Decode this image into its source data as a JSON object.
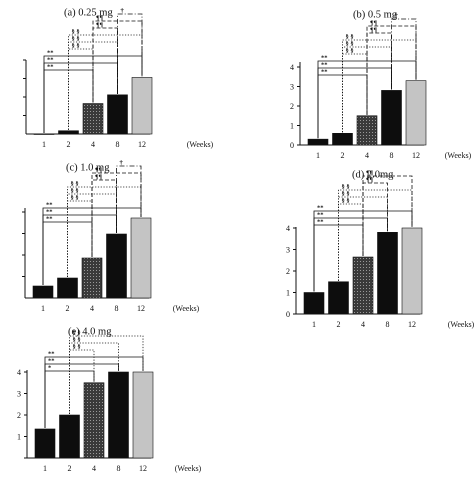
{
  "figure": {
    "x_unit": "(Weeks)"
  },
  "chart_data": [
    {
      "type": "bar",
      "title": "(a) 0.25 mg",
      "categories": [
        "1",
        "2",
        "4",
        "8",
        "12"
      ],
      "values": [
        0,
        0.15,
        1.4,
        1.8,
        2.6
      ],
      "ylim": [
        0,
        3.4
      ],
      "y_ticks": [],
      "fills": [
        "solid-black",
        "solid-black",
        "dotted-dark",
        "solid-black",
        "solid-gray"
      ],
      "significance": [
        {
          "label": "**",
          "from": "1",
          "to": "4",
          "style": "solid"
        },
        {
          "label": "**",
          "from": "1",
          "to": "8",
          "style": "solid"
        },
        {
          "label": "**",
          "from": "1",
          "to": "12",
          "style": "solid"
        },
        {
          "label": "§ §",
          "from": "2",
          "to": "4",
          "style": "dotted"
        },
        {
          "label": "§ §",
          "from": "2",
          "to": "8",
          "style": "dotted"
        },
        {
          "label": "§ §",
          "from": "2",
          "to": "12",
          "style": "dotted"
        },
        {
          "label": "¶¶",
          "from": "4",
          "to": "8",
          "style": "dashed"
        },
        {
          "label": "¶¶",
          "from": "4",
          "to": "12",
          "style": "dashed"
        },
        {
          "label": "†",
          "from": "8",
          "to": "12",
          "style": "dashdot"
        }
      ]
    },
    {
      "type": "bar",
      "title": "(b) 0.5 mg",
      "categories": [
        "1",
        "2",
        "4",
        "8",
        "12"
      ],
      "values": [
        0.3,
        0.6,
        1.5,
        2.8,
        3.3
      ],
      "ylim": [
        0,
        4
      ],
      "y_ticks": [
        "0",
        "1",
        "2",
        "3",
        "4"
      ],
      "fills": [
        "solid-black",
        "solid-black",
        "dotted-dark",
        "solid-black",
        "solid-gray"
      ],
      "significance": [
        {
          "label": "**",
          "from": "1",
          "to": "4",
          "style": "solid"
        },
        {
          "label": "**",
          "from": "1",
          "to": "8",
          "style": "solid"
        },
        {
          "label": "**",
          "from": "1",
          "to": "12",
          "style": "solid"
        },
        {
          "label": "§ §",
          "from": "2",
          "to": "4",
          "style": "dotted"
        },
        {
          "label": "§ §",
          "from": "2",
          "to": "8",
          "style": "dotted"
        },
        {
          "label": "§ §",
          "from": "2",
          "to": "12",
          "style": "dotted"
        },
        {
          "label": "¶¶",
          "from": "4",
          "to": "8",
          "style": "dashed"
        },
        {
          "label": "¶¶",
          "from": "4",
          "to": "12",
          "style": "dashed"
        },
        {
          "label": "†",
          "from": "8",
          "to": "12",
          "style": "dashdot"
        }
      ]
    },
    {
      "type": "bar",
      "title": "(c) 1.0 mg",
      "categories": [
        "1",
        "2",
        "4",
        "8",
        "12"
      ],
      "values": [
        0.6,
        1.0,
        2.0,
        3.2,
        4.0
      ],
      "ylim": [
        0,
        4.3
      ],
      "y_ticks": [],
      "fills": [
        "solid-black",
        "solid-black",
        "dotted-dark",
        "solid-black",
        "solid-gray"
      ],
      "significance": [
        {
          "label": "**",
          "from": "1",
          "to": "4",
          "style": "solid"
        },
        {
          "label": "**",
          "from": "1",
          "to": "8",
          "style": "solid"
        },
        {
          "label": "**",
          "from": "1",
          "to": "12",
          "style": "solid"
        },
        {
          "label": "§ §",
          "from": "2",
          "to": "4",
          "style": "dotted"
        },
        {
          "label": "§ §",
          "from": "2",
          "to": "8",
          "style": "dotted"
        },
        {
          "label": "§ §",
          "from": "2",
          "to": "12",
          "style": "dotted"
        },
        {
          "label": "¶¶",
          "from": "4",
          "to": "8",
          "style": "dashed"
        },
        {
          "label": "¶¶",
          "from": "4",
          "to": "12",
          "style": "dashed"
        },
        {
          "label": "†",
          "from": "8",
          "to": "12",
          "style": "dashdot"
        }
      ]
    },
    {
      "type": "bar",
      "title": "(d) 2.0mg",
      "categories": [
        "1",
        "2",
        "4",
        "8",
        "12"
      ],
      "values": [
        1.0,
        1.5,
        2.65,
        3.8,
        4.0
      ],
      "ylim": [
        0,
        4
      ],
      "y_ticks": [
        "0",
        "1",
        "2",
        "3",
        "4"
      ],
      "fills": [
        "solid-black",
        "solid-black",
        "dotted-dark",
        "solid-black",
        "solid-gray"
      ],
      "significance": [
        {
          "label": "**",
          "from": "1",
          "to": "4",
          "style": "solid"
        },
        {
          "label": "**",
          "from": "1",
          "to": "8",
          "style": "solid"
        },
        {
          "label": "**",
          "from": "1",
          "to": "12",
          "style": "solid"
        },
        {
          "label": "§ §",
          "from": "2",
          "to": "4",
          "style": "dotted"
        },
        {
          "label": "§ §",
          "from": "2",
          "to": "8",
          "style": "dotted"
        },
        {
          "label": "§ §",
          "from": "2",
          "to": "12",
          "style": "dotted"
        },
        {
          "label": "¶¶",
          "from": "4",
          "to": "8",
          "style": "dashed"
        },
        {
          "label": "¶¶",
          "from": "4",
          "to": "12",
          "style": "dashed"
        }
      ]
    },
    {
      "type": "bar",
      "title": "(e) 4.0 mg",
      "categories": [
        "1",
        "2",
        "4",
        "8",
        "12"
      ],
      "values": [
        1.35,
        2.0,
        3.5,
        4.0,
        4.0
      ],
      "ylim": [
        0,
        4
      ],
      "y_ticks": [
        "",
        "1",
        "2",
        "3",
        "4"
      ],
      "fills": [
        "solid-black",
        "solid-black",
        "dotted-dark",
        "solid-black",
        "solid-gray"
      ],
      "significance": [
        {
          "label": "*",
          "from": "1",
          "to": "4",
          "style": "solid"
        },
        {
          "label": "**",
          "from": "1",
          "to": "8",
          "style": "solid"
        },
        {
          "label": "**",
          "from": "1",
          "to": "12",
          "style": "solid"
        },
        {
          "label": "§ §",
          "from": "2",
          "to": "4",
          "style": "dotted"
        },
        {
          "label": "§ §",
          "from": "2",
          "to": "8",
          "style": "dotted"
        },
        {
          "label": "§ §",
          "from": "2",
          "to": "12",
          "style": "dotted"
        }
      ]
    }
  ]
}
